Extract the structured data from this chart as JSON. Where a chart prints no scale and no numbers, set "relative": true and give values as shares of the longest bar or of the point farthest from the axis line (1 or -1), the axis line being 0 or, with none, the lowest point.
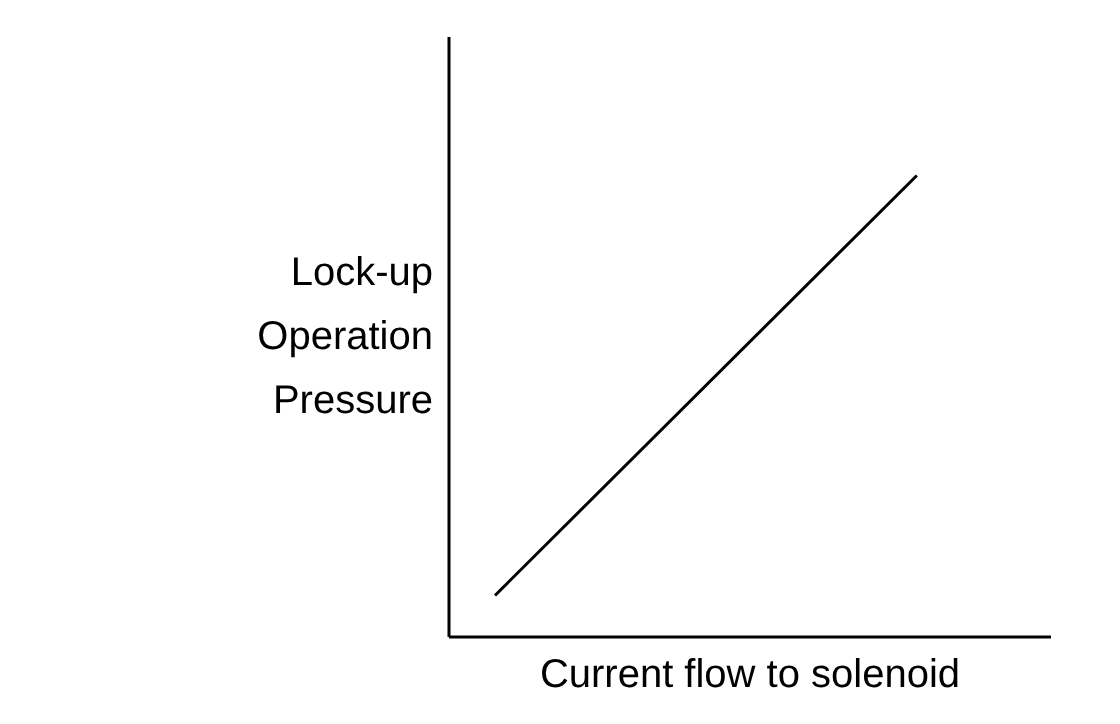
{
  "chart_data": {
    "type": "line",
    "relative": true,
    "xlabel": "Current flow to solenoid",
    "ylabel": "Lock-up Operation Pressure",
    "categories": [
      null,
      null
    ],
    "series": [
      {
        "color": "#000000",
        "values": [
          0.09,
          1
        ]
      }
    ],
    "grid": false,
    "marker": "none",
    "line_style": "solid"
  }
}
